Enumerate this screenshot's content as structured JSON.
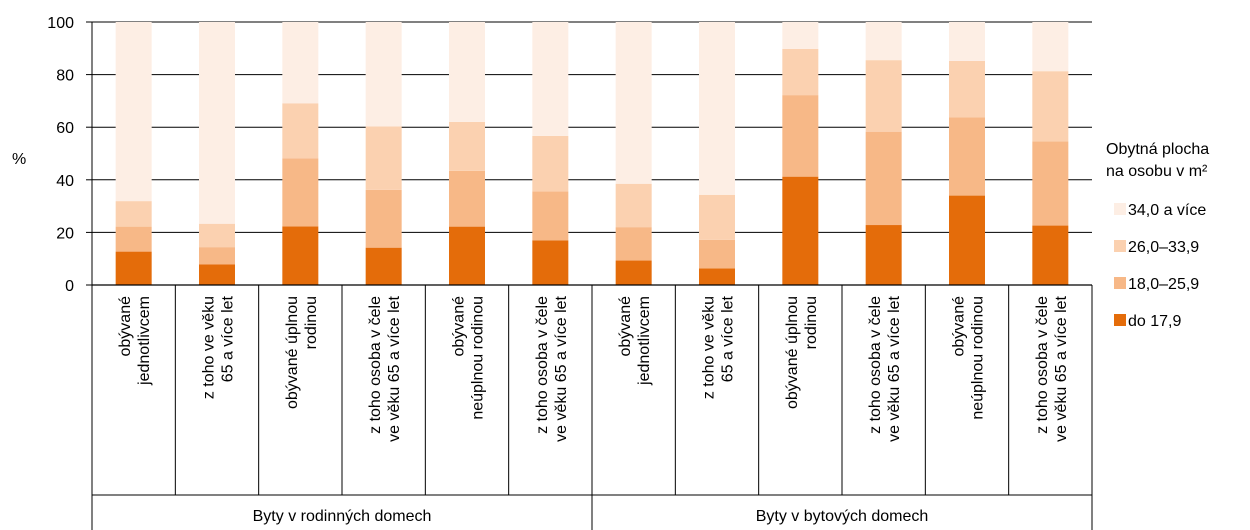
{
  "chart_data": {
    "type": "bar",
    "stacked": true,
    "ylabel": "%",
    "ylim": [
      0,
      100
    ],
    "yticks": [
      "0",
      "20",
      "40",
      "60",
      "80",
      "100"
    ],
    "grid": true,
    "legend_position": "right",
    "legend_title": [
      "Obytná plocha",
      "na osobu v m²"
    ],
    "groups": [
      {
        "label": "Byty v rodinných domech",
        "count": 6
      },
      {
        "label": "Byty v bytových domech",
        "count": 6
      }
    ],
    "categories": [
      [
        "obývané",
        "jednotlivcem"
      ],
      [
        "z toho ve věku",
        "65 a více let"
      ],
      [
        "obývané úplnou",
        "rodinou"
      ],
      [
        "z toho osoba v čele",
        "ve věku 65 a více let"
      ],
      [
        "obývané",
        "neúplnou rodinou"
      ],
      [
        "z toho osoba v čele",
        "ve věku 65 a více let"
      ],
      [
        "obývané",
        "jednotlivcem"
      ],
      [
        "z toho ve věku",
        "65 a více let"
      ],
      [
        "obývané úplnou",
        "rodinou"
      ],
      [
        "z toho osoba v čele",
        "ve věku 65 a více let"
      ],
      [
        "obývané",
        "neúplnou rodinou"
      ],
      [
        "z toho osoba v čele",
        "ve věku 65 a více let"
      ]
    ],
    "series": [
      {
        "name": "do 17,9",
        "color": "#e46c0a",
        "values": [
          12.7,
          7.8,
          22.3,
          14.2,
          22.2,
          17.0,
          9.3,
          6.3,
          41.2,
          22.8,
          34.0,
          22.6
        ]
      },
      {
        "name": "18,0–25,9",
        "color": "#f7b887",
        "values": [
          9.5,
          6.6,
          25.9,
          22.0,
          21.2,
          18.6,
          12.7,
          10.9,
          31.0,
          35.5,
          29.7,
          32.0
        ]
      },
      {
        "name": "26,0–33,9",
        "color": "#fbd1b0",
        "values": [
          9.7,
          8.9,
          20.9,
          24.1,
          18.6,
          21.1,
          16.5,
          17.1,
          17.6,
          27.2,
          21.5,
          26.7
        ]
      },
      {
        "name": "34,0 a více",
        "color": "#fdeee4",
        "values": [
          68.1,
          76.7,
          30.9,
          39.7,
          38.0,
          43.3,
          61.5,
          65.7,
          10.2,
          14.5,
          14.8,
          18.7
        ]
      }
    ]
  }
}
